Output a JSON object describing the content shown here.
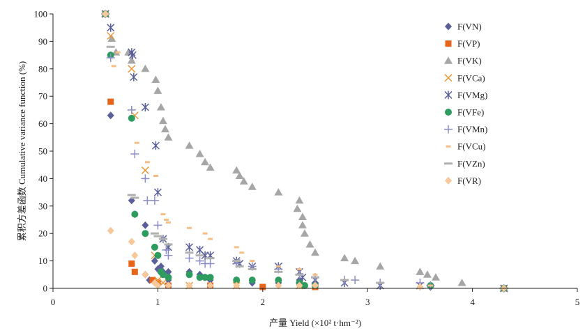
{
  "chart_data": {
    "type": "scatter",
    "xlabel": "产量 Yield (×10² t·hm⁻²)",
    "ylabel": "累积方差函数 Cumulative variance function (%)",
    "xlim": [
      0,
      5
    ],
    "ylim": [
      0,
      100
    ],
    "x_ticks": [
      "0",
      "1",
      "2",
      "3",
      "4",
      "5"
    ],
    "y_ticks": [
      "0",
      "10",
      "20",
      "30",
      "40",
      "50",
      "60",
      "70",
      "80",
      "90",
      "100"
    ],
    "grid": false,
    "legend_position": "right",
    "series": [
      {
        "name": "F(VN)",
        "color": "#5a5f99",
        "marker": "diamond",
        "points": [
          [
            0.5,
            100
          ],
          [
            0.55,
            63
          ],
          [
            0.75,
            32
          ],
          [
            0.78,
            27
          ],
          [
            0.88,
            23
          ],
          [
            0.88,
            5
          ],
          [
            0.92,
            3
          ],
          [
            0.97,
            10
          ],
          [
            1.0,
            7
          ],
          [
            1.03,
            8
          ],
          [
            1.05,
            6
          ],
          [
            1.1,
            6
          ],
          [
            1.1,
            3
          ],
          [
            1.3,
            6
          ],
          [
            1.4,
            5
          ],
          [
            1.45,
            4
          ],
          [
            1.5,
            3
          ],
          [
            1.75,
            3
          ],
          [
            1.9,
            2
          ],
          [
            2.15,
            2
          ],
          [
            2.35,
            3
          ],
          [
            2.5,
            2
          ],
          [
            3.6,
            0.5
          ],
          [
            4.3,
            0
          ]
        ]
      },
      {
        "name": "F(VP)",
        "color": "#e8641a",
        "marker": "square",
        "points": [
          [
            0.5,
            100
          ],
          [
            0.55,
            68
          ],
          [
            0.75,
            9
          ],
          [
            0.78,
            6
          ],
          [
            0.95,
            3
          ],
          [
            1.0,
            2
          ],
          [
            1.1,
            1
          ],
          [
            1.5,
            1
          ],
          [
            2.0,
            0.5
          ],
          [
            2.5,
            0.5
          ],
          [
            4.3,
            0
          ]
        ]
      },
      {
        "name": "F(VK)",
        "color": "#a6a6a6",
        "marker": "triangle",
        "points": [
          [
            0.5,
            100
          ],
          [
            0.56,
            91
          ],
          [
            0.6,
            86
          ],
          [
            0.72,
            86
          ],
          [
            0.75,
            83
          ],
          [
            0.88,
            80
          ],
          [
            0.98,
            76
          ],
          [
            1.0,
            72
          ],
          [
            1.03,
            66
          ],
          [
            1.05,
            61
          ],
          [
            1.07,
            58
          ],
          [
            1.1,
            55
          ],
          [
            1.3,
            52
          ],
          [
            1.4,
            49
          ],
          [
            1.45,
            46
          ],
          [
            1.5,
            44
          ],
          [
            1.75,
            43
          ],
          [
            1.78,
            41
          ],
          [
            1.82,
            39
          ],
          [
            1.9,
            37
          ],
          [
            2.15,
            35
          ],
          [
            2.35,
            32
          ],
          [
            2.33,
            29
          ],
          [
            2.38,
            26
          ],
          [
            2.38,
            23
          ],
          [
            2.4,
            20
          ],
          [
            2.45,
            16
          ],
          [
            2.5,
            13
          ],
          [
            2.78,
            11
          ],
          [
            2.88,
            10
          ],
          [
            3.12,
            8
          ],
          [
            3.5,
            6
          ],
          [
            3.57,
            5
          ],
          [
            3.65,
            4
          ],
          [
            3.9,
            2
          ],
          [
            4.3,
            0
          ]
        ]
      },
      {
        "name": "F(VCa)",
        "color": "#e89a3c",
        "marker": "x",
        "points": [
          [
            0.5,
            100
          ],
          [
            0.55,
            92
          ],
          [
            0.75,
            80
          ],
          [
            0.78,
            63
          ],
          [
            0.88,
            43
          ],
          [
            0.97,
            12
          ],
          [
            1.0,
            3
          ],
          [
            1.05,
            2
          ],
          [
            1.3,
            1
          ],
          [
            1.75,
            1
          ],
          [
            2.35,
            1
          ],
          [
            4.3,
            0
          ]
        ]
      },
      {
        "name": "F(VMg)",
        "color": "#5a5f99",
        "marker": "asterisk",
        "points": [
          [
            0.5,
            100
          ],
          [
            0.55,
            95
          ],
          [
            0.75,
            86
          ],
          [
            0.76,
            85
          ],
          [
            0.77,
            77
          ],
          [
            0.88,
            66
          ],
          [
            0.98,
            52
          ],
          [
            1.0,
            35
          ],
          [
            1.05,
            18
          ],
          [
            1.1,
            15
          ],
          [
            1.3,
            15
          ],
          [
            1.4,
            14
          ],
          [
            1.45,
            12
          ],
          [
            1.5,
            12
          ],
          [
            1.75,
            10
          ],
          [
            1.78,
            9
          ],
          [
            1.9,
            8
          ],
          [
            2.15,
            8
          ],
          [
            2.35,
            6
          ],
          [
            2.38,
            4
          ],
          [
            2.5,
            3
          ],
          [
            2.78,
            2
          ],
          [
            3.12,
            1
          ],
          [
            3.5,
            1
          ],
          [
            4.3,
            0
          ]
        ]
      },
      {
        "name": "F(VFe)",
        "color": "#2e9b5f",
        "marker": "circle",
        "points": [
          [
            0.5,
            100
          ],
          [
            0.55,
            85
          ],
          [
            0.75,
            62
          ],
          [
            0.78,
            27
          ],
          [
            0.88,
            20
          ],
          [
            0.97,
            15
          ],
          [
            1.0,
            12
          ],
          [
            1.03,
            6
          ],
          [
            1.05,
            5
          ],
          [
            1.1,
            4
          ],
          [
            1.3,
            5
          ],
          [
            1.4,
            4
          ],
          [
            1.45,
            4
          ],
          [
            1.5,
            4
          ],
          [
            1.75,
            3
          ],
          [
            1.9,
            3
          ],
          [
            2.15,
            3
          ],
          [
            2.35,
            2
          ],
          [
            2.4,
            1
          ],
          [
            2.5,
            1
          ],
          [
            3.6,
            1
          ],
          [
            4.3,
            0
          ]
        ]
      },
      {
        "name": "F(VMn)",
        "color": "#8c8cc6",
        "marker": "plus",
        "points": [
          [
            0.5,
            100
          ],
          [
            0.55,
            84
          ],
          [
            0.75,
            65
          ],
          [
            0.78,
            49
          ],
          [
            0.88,
            40
          ],
          [
            0.9,
            32
          ],
          [
            0.97,
            32
          ],
          [
            1.0,
            23
          ],
          [
            1.05,
            18
          ],
          [
            1.08,
            14
          ],
          [
            1.1,
            12
          ],
          [
            1.3,
            11
          ],
          [
            1.4,
            10
          ],
          [
            1.45,
            9
          ],
          [
            1.5,
            9
          ],
          [
            1.75,
            9
          ],
          [
            1.9,
            8
          ],
          [
            2.15,
            7
          ],
          [
            2.35,
            5
          ],
          [
            2.5,
            4
          ],
          [
            2.78,
            3
          ],
          [
            2.88,
            3
          ],
          [
            3.12,
            2
          ],
          [
            3.5,
            2
          ],
          [
            3.6,
            1
          ],
          [
            4.3,
            0
          ]
        ]
      },
      {
        "name": "F(VCu)",
        "color": "#f4be86",
        "marker": "dash",
        "points": [
          [
            0.5,
            100
          ],
          [
            0.58,
            81
          ],
          [
            0.62,
            86
          ],
          [
            0.8,
            53
          ],
          [
            0.9,
            46
          ],
          [
            0.98,
            41
          ],
          [
            1.05,
            27
          ],
          [
            1.08,
            25
          ],
          [
            1.1,
            24
          ],
          [
            1.3,
            22
          ],
          [
            1.45,
            20
          ],
          [
            1.5,
            18
          ],
          [
            1.75,
            15
          ],
          [
            1.8,
            13
          ],
          [
            1.9,
            10
          ],
          [
            2.15,
            8
          ],
          [
            2.35,
            7
          ],
          [
            2.5,
            5
          ],
          [
            2.78,
            3
          ],
          [
            3.12,
            2
          ],
          [
            3.6,
            1
          ],
          [
            4.3,
            0
          ]
        ]
      },
      {
        "name": "F(VZn)",
        "color": "#b0b0b0",
        "marker": "hline",
        "points": [
          [
            0.5,
            100
          ],
          [
            0.55,
            88
          ],
          [
            0.75,
            34
          ],
          [
            0.78,
            33
          ],
          [
            0.97,
            20
          ],
          [
            1.0,
            19
          ],
          [
            1.05,
            18
          ],
          [
            1.1,
            16
          ],
          [
            1.3,
            13
          ],
          [
            1.4,
            12
          ],
          [
            1.5,
            11
          ],
          [
            1.75,
            10
          ],
          [
            1.78,
            8
          ],
          [
            1.9,
            7
          ],
          [
            2.15,
            6
          ],
          [
            2.35,
            5
          ],
          [
            2.5,
            4
          ],
          [
            2.78,
            3
          ],
          [
            3.12,
            2
          ],
          [
            4.3,
            0
          ]
        ]
      },
      {
        "name": "F(VR)",
        "color": "#f6c89a",
        "marker": "diamond",
        "points": [
          [
            0.5,
            100
          ],
          [
            0.55,
            21
          ],
          [
            0.75,
            17
          ],
          [
            0.78,
            12
          ],
          [
            0.88,
            5
          ],
          [
            0.97,
            2
          ],
          [
            1.0,
            1
          ],
          [
            1.1,
            1
          ],
          [
            1.3,
            1
          ],
          [
            1.5,
            1
          ],
          [
            1.75,
            1
          ],
          [
            2.15,
            1
          ],
          [
            2.35,
            1
          ],
          [
            2.5,
            1
          ],
          [
            3.5,
            0.5
          ],
          [
            4.3,
            0
          ]
        ]
      }
    ]
  }
}
